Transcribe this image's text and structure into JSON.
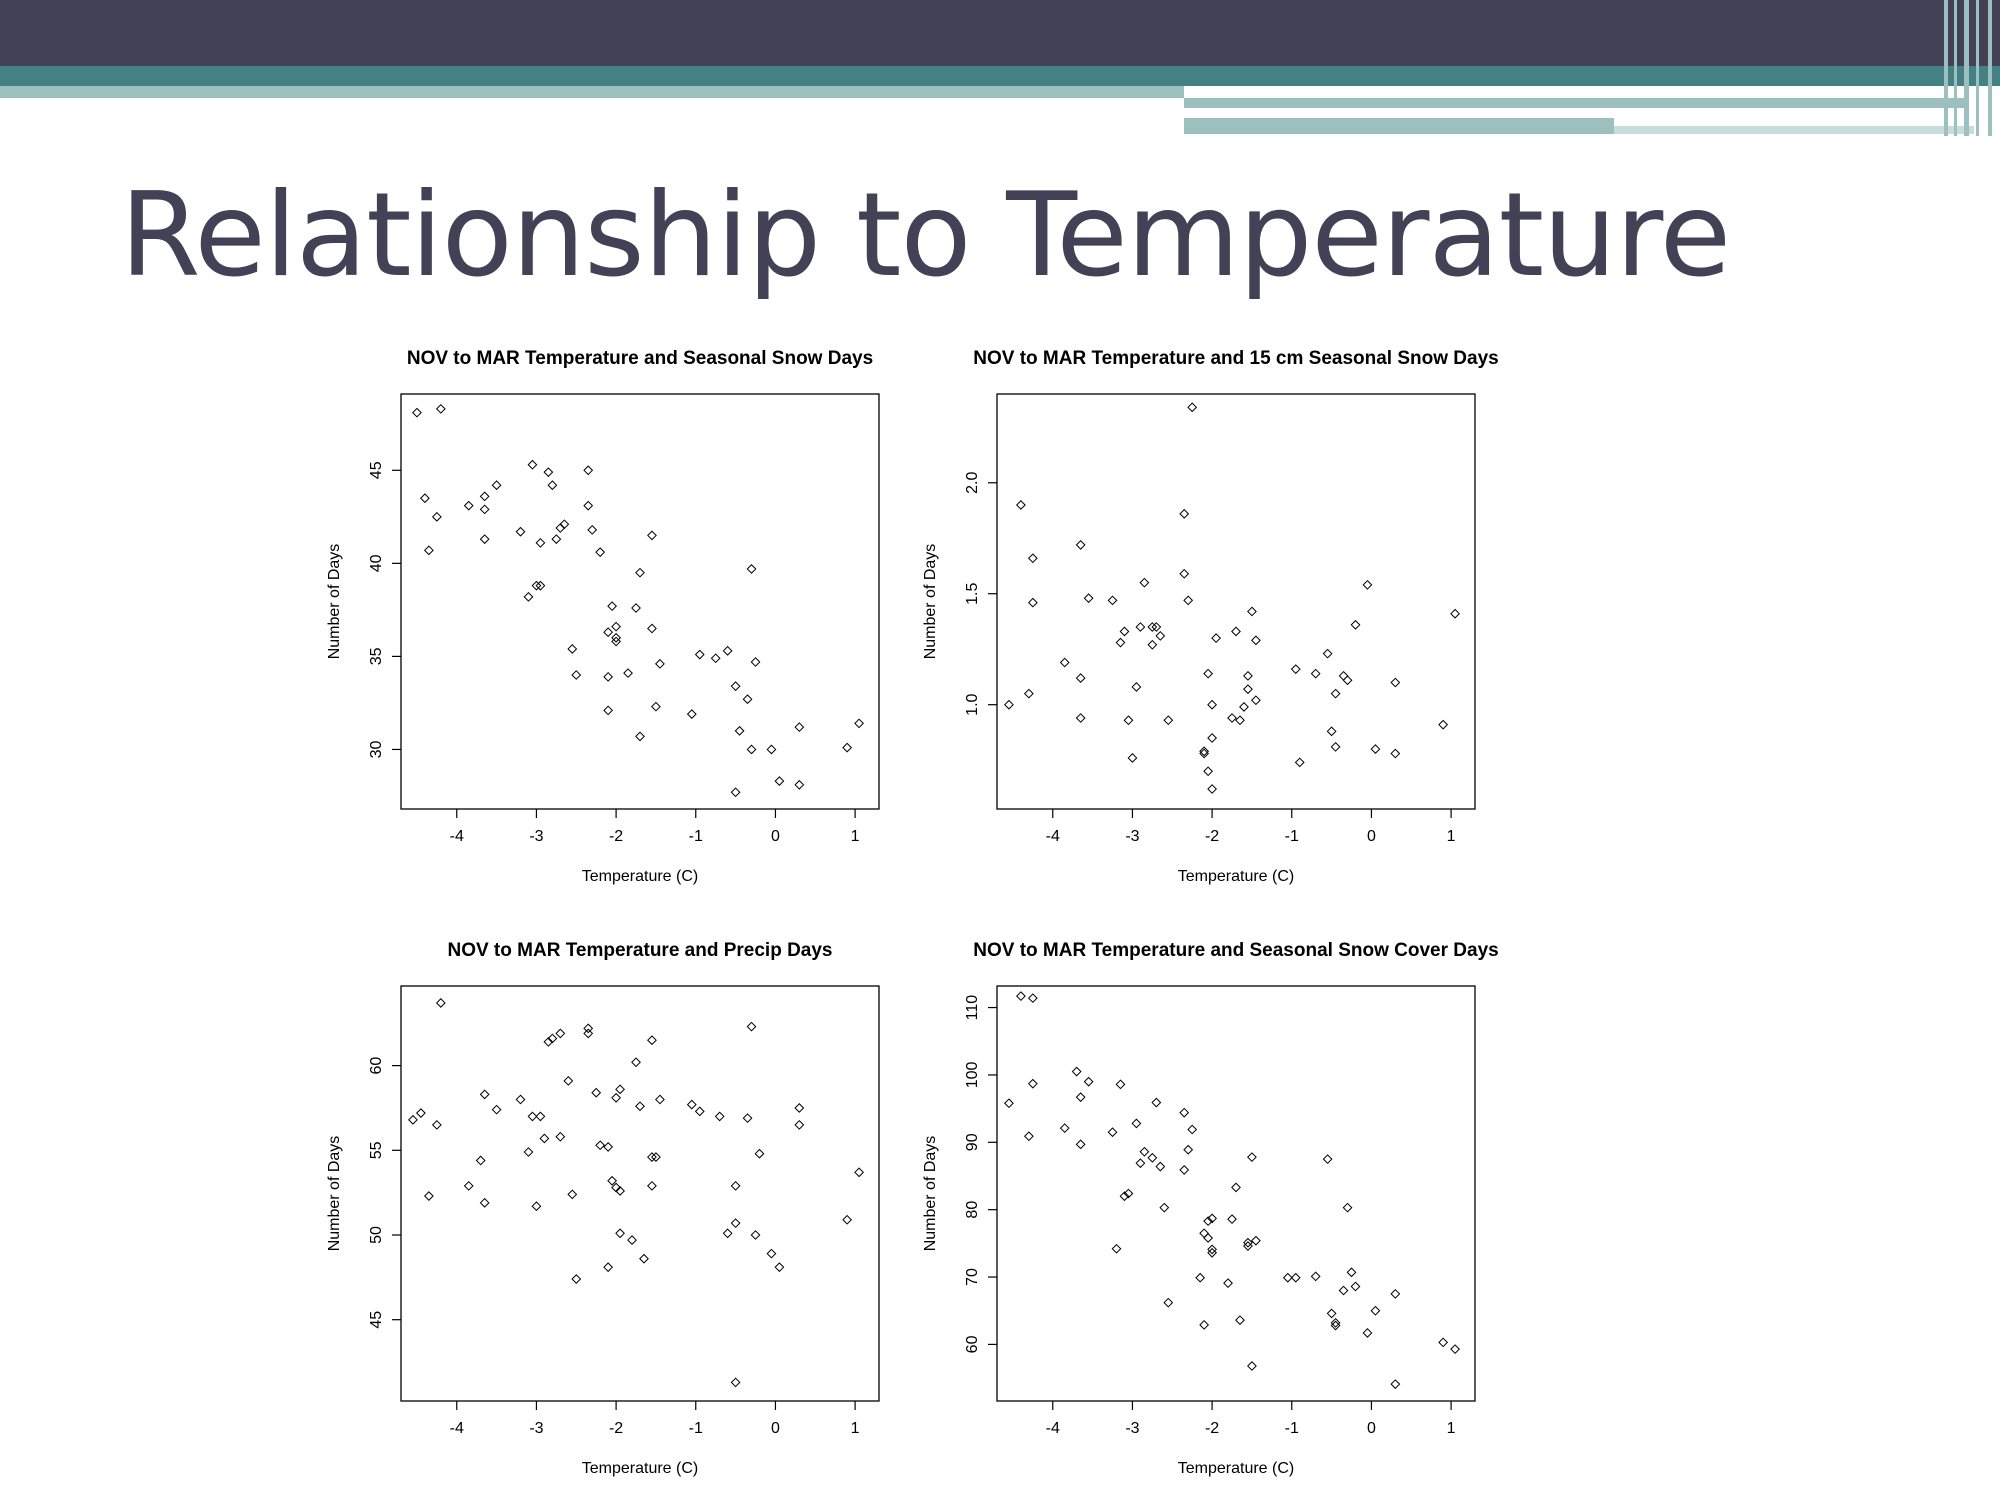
{
  "slide": {
    "title": "Relationship to Temperature",
    "colors": {
      "header_dark": "#424155",
      "header_teal": "#438185",
      "header_light": "#9cbfc0",
      "title_text": "#424155"
    }
  },
  "chart_data": [
    {
      "type": "scatter",
      "title": "NOV to MAR Temperature and Seasonal Snow Days",
      "xlabel": "Temperature (C)",
      "ylabel": "Number of Days",
      "xlim": [
        -4.7,
        1.3
      ],
      "ylim": [
        26.8,
        49.1
      ],
      "xticks": [
        -4,
        -3,
        -2,
        -1,
        0,
        1
      ],
      "yticks": [
        30,
        35,
        40,
        45
      ],
      "marker": "diamond",
      "points": [
        [
          -4.5,
          48.1
        ],
        [
          -4.2,
          48.3
        ],
        [
          -4.4,
          43.5
        ],
        [
          -4.25,
          42.5
        ],
        [
          -4.35,
          40.7
        ],
        [
          -3.85,
          43.1
        ],
        [
          -3.65,
          43.6
        ],
        [
          -3.65,
          42.9
        ],
        [
          -3.65,
          41.3
        ],
        [
          -3.5,
          44.2
        ],
        [
          -3.2,
          41.7
        ],
        [
          -3.1,
          38.2
        ],
        [
          -3.05,
          45.3
        ],
        [
          -3.0,
          38.8
        ],
        [
          -2.95,
          38.8
        ],
        [
          -2.95,
          41.1
        ],
        [
          -2.85,
          44.9
        ],
        [
          -2.8,
          44.2
        ],
        [
          -2.75,
          41.3
        ],
        [
          -2.7,
          41.9
        ],
        [
          -2.65,
          42.1
        ],
        [
          -2.55,
          35.4
        ],
        [
          -2.5,
          34.0
        ],
        [
          -2.35,
          45.0
        ],
        [
          -2.35,
          43.1
        ],
        [
          -2.3,
          41.8
        ],
        [
          -2.2,
          40.6
        ],
        [
          -2.1,
          36.3
        ],
        [
          -2.1,
          33.9
        ],
        [
          -2.1,
          32.1
        ],
        [
          -2.05,
          37.7
        ],
        [
          -2.0,
          36.6
        ],
        [
          -2.0,
          36.0
        ],
        [
          -2.0,
          35.8
        ],
        [
          -1.85,
          34.1
        ],
        [
          -1.75,
          37.6
        ],
        [
          -1.7,
          39.5
        ],
        [
          -1.7,
          30.7
        ],
        [
          -1.55,
          41.5
        ],
        [
          -1.55,
          36.5
        ],
        [
          -1.5,
          32.3
        ],
        [
          -1.45,
          34.6
        ],
        [
          -1.05,
          31.9
        ],
        [
          -0.95,
          35.1
        ],
        [
          -0.75,
          34.9
        ],
        [
          -0.6,
          35.3
        ],
        [
          -0.5,
          33.4
        ],
        [
          -0.5,
          27.7
        ],
        [
          -0.45,
          31.0
        ],
        [
          -0.35,
          32.7
        ],
        [
          -0.3,
          39.7
        ],
        [
          -0.25,
          34.7
        ],
        [
          -0.3,
          30.0
        ],
        [
          -0.05,
          30.0
        ],
        [
          0.05,
          28.3
        ],
        [
          0.3,
          28.1
        ],
        [
          0.3,
          31.2
        ],
        [
          0.9,
          30.1
        ],
        [
          1.05,
          31.4
        ]
      ]
    },
    {
      "type": "scatter",
      "title": "NOV to MAR Temperature and 15 cm Seasonal Snow Days",
      "xlabel": "Temperature (C)",
      "ylabel": "Number of Days",
      "xlim": [
        -4.7,
        1.3
      ],
      "ylim": [
        0.53,
        2.4
      ],
      "xticks": [
        -4,
        -3,
        -2,
        -1,
        0,
        1
      ],
      "yticks": [
        1.0,
        1.5,
        2.0
      ],
      "marker": "diamond",
      "points": [
        [
          -4.55,
          1.0
        ],
        [
          -4.4,
          1.9
        ],
        [
          -4.3,
          1.05
        ],
        [
          -4.25,
          1.66
        ],
        [
          -4.25,
          1.46
        ],
        [
          -3.85,
          1.19
        ],
        [
          -3.65,
          1.72
        ],
        [
          -3.65,
          1.12
        ],
        [
          -3.65,
          0.94
        ],
        [
          -3.55,
          1.48
        ],
        [
          -3.25,
          1.47
        ],
        [
          -3.15,
          1.28
        ],
        [
          -3.1,
          1.33
        ],
        [
          -3.05,
          0.93
        ],
        [
          -3.0,
          0.76
        ],
        [
          -2.95,
          1.08
        ],
        [
          -2.9,
          1.35
        ],
        [
          -2.85,
          1.55
        ],
        [
          -2.75,
          1.27
        ],
        [
          -2.75,
          1.35
        ],
        [
          -2.7,
          1.35
        ],
        [
          -2.65,
          1.31
        ],
        [
          -2.55,
          0.93
        ],
        [
          -2.35,
          1.86
        ],
        [
          -2.35,
          1.59
        ],
        [
          -2.3,
          1.47
        ],
        [
          -2.25,
          2.34
        ],
        [
          -2.1,
          0.78
        ],
        [
          -2.1,
          0.79
        ],
        [
          -2.05,
          0.7
        ],
        [
          -2.05,
          1.14
        ],
        [
          -2.0,
          0.62
        ],
        [
          -2.0,
          1.0
        ],
        [
          -2.0,
          0.85
        ],
        [
          -1.95,
          1.3
        ],
        [
          -1.75,
          0.94
        ],
        [
          -1.7,
          1.33
        ],
        [
          -1.65,
          0.93
        ],
        [
          -1.6,
          0.99
        ],
        [
          -1.55,
          1.13
        ],
        [
          -1.55,
          1.07
        ],
        [
          -1.5,
          1.42
        ],
        [
          -1.45,
          1.02
        ],
        [
          -1.45,
          1.29
        ],
        [
          -0.95,
          1.16
        ],
        [
          -0.9,
          0.74
        ],
        [
          -0.7,
          1.14
        ],
        [
          -0.55,
          1.23
        ],
        [
          -0.5,
          0.88
        ],
        [
          -0.45,
          0.81
        ],
        [
          -0.45,
          1.05
        ],
        [
          -0.35,
          1.13
        ],
        [
          -0.3,
          1.11
        ],
        [
          -0.2,
          1.36
        ],
        [
          -0.05,
          1.54
        ],
        [
          0.05,
          0.8
        ],
        [
          0.3,
          1.1
        ],
        [
          0.3,
          0.78
        ],
        [
          0.9,
          0.91
        ],
        [
          1.05,
          1.41
        ]
      ]
    },
    {
      "type": "scatter",
      "title": "NOV to MAR Temperature and Precip Days",
      "xlabel": "Temperature (C)",
      "ylabel": "Number of Days",
      "xlim": [
        -4.7,
        1.3
      ],
      "ylim": [
        40.2,
        64.7
      ],
      "xticks": [
        -4,
        -3,
        -2,
        -1,
        0,
        1
      ],
      "yticks": [
        45,
        50,
        55,
        60
      ],
      "marker": "diamond",
      "points": [
        [
          -4.55,
          56.8
        ],
        [
          -4.45,
          57.2
        ],
        [
          -4.35,
          52.3
        ],
        [
          -4.25,
          56.5
        ],
        [
          -4.2,
          63.7
        ],
        [
          -3.85,
          52.9
        ],
        [
          -3.7,
          54.4
        ],
        [
          -3.65,
          58.3
        ],
        [
          -3.65,
          51.9
        ],
        [
          -3.5,
          57.4
        ],
        [
          -3.2,
          58.0
        ],
        [
          -3.1,
          54.9
        ],
        [
          -3.05,
          57.0
        ],
        [
          -3.0,
          51.7
        ],
        [
          -2.95,
          57.0
        ],
        [
          -2.9,
          55.7
        ],
        [
          -2.85,
          61.4
        ],
        [
          -2.8,
          61.6
        ],
        [
          -2.7,
          61.9
        ],
        [
          -2.7,
          55.8
        ],
        [
          -2.6,
          59.1
        ],
        [
          -2.55,
          52.4
        ],
        [
          -2.5,
          47.4
        ],
        [
          -2.35,
          62.2
        ],
        [
          -2.35,
          61.9
        ],
        [
          -2.25,
          58.4
        ],
        [
          -2.2,
          55.3
        ],
        [
          -2.1,
          55.2
        ],
        [
          -2.1,
          48.1
        ],
        [
          -2.05,
          53.2
        ],
        [
          -2.0,
          52.8
        ],
        [
          -2.0,
          58.1
        ],
        [
          -1.95,
          58.6
        ],
        [
          -1.95,
          50.1
        ],
        [
          -1.95,
          52.6
        ],
        [
          -1.8,
          49.7
        ],
        [
          -1.75,
          60.2
        ],
        [
          -1.7,
          57.6
        ],
        [
          -1.65,
          48.6
        ],
        [
          -1.55,
          54.6
        ],
        [
          -1.55,
          61.5
        ],
        [
          -1.5,
          54.6
        ],
        [
          -1.45,
          58.0
        ],
        [
          -1.55,
          52.9
        ],
        [
          -1.05,
          57.7
        ],
        [
          -0.95,
          57.3
        ],
        [
          -0.7,
          57.0
        ],
        [
          -0.6,
          50.1
        ],
        [
          -0.5,
          50.7
        ],
        [
          -0.5,
          52.9
        ],
        [
          -0.5,
          41.3
        ],
        [
          -0.35,
          56.9
        ],
        [
          -0.3,
          62.3
        ],
        [
          -0.25,
          50.0
        ],
        [
          -0.2,
          54.8
        ],
        [
          -0.05,
          48.9
        ],
        [
          0.05,
          48.1
        ],
        [
          0.3,
          57.5
        ],
        [
          0.3,
          56.5
        ],
        [
          0.9,
          50.9
        ],
        [
          1.05,
          53.7
        ]
      ]
    },
    {
      "type": "scatter",
      "title": "NOV to MAR Temperature and Seasonal Snow Cover Days",
      "xlabel": "Temperature (C)",
      "ylabel": "Number of Days",
      "xlim": [
        -4.7,
        1.3
      ],
      "ylim": [
        51.6,
        113.2
      ],
      "xticks": [
        -4,
        -3,
        -2,
        -1,
        0,
        1
      ],
      "yticks": [
        60,
        70,
        80,
        90,
        100,
        110
      ],
      "marker": "diamond",
      "points": [
        [
          -4.55,
          95.8
        ],
        [
          -4.4,
          111.7
        ],
        [
          -4.3,
          90.9
        ],
        [
          -4.25,
          98.7
        ],
        [
          -4.25,
          111.4
        ],
        [
          -3.85,
          92.1
        ],
        [
          -3.7,
          100.5
        ],
        [
          -3.65,
          96.7
        ],
        [
          -3.65,
          89.7
        ],
        [
          -3.55,
          99.0
        ],
        [
          -3.25,
          91.5
        ],
        [
          -3.2,
          74.2
        ],
        [
          -3.15,
          98.6
        ],
        [
          -3.1,
          82.0
        ],
        [
          -3.05,
          82.4
        ],
        [
          -2.95,
          92.8
        ],
        [
          -2.9,
          86.9
        ],
        [
          -2.85,
          88.6
        ],
        [
          -2.75,
          87.7
        ],
        [
          -2.7,
          95.9
        ],
        [
          -2.65,
          86.4
        ],
        [
          -2.6,
          80.3
        ],
        [
          -2.55,
          66.2
        ],
        [
          -2.35,
          94.4
        ],
        [
          -2.35,
          85.9
        ],
        [
          -2.3,
          88.9
        ],
        [
          -2.25,
          91.9
        ],
        [
          -2.15,
          69.9
        ],
        [
          -2.1,
          62.9
        ],
        [
          -2.1,
          76.5
        ],
        [
          -2.05,
          75.8
        ],
        [
          -2.05,
          78.3
        ],
        [
          -2.0,
          78.7
        ],
        [
          -2.0,
          73.6
        ],
        [
          -2.0,
          74.1
        ],
        [
          -1.8,
          69.1
        ],
        [
          -1.75,
          78.6
        ],
        [
          -1.7,
          83.3
        ],
        [
          -1.65,
          63.6
        ],
        [
          -1.55,
          74.6
        ],
        [
          -1.55,
          75.1
        ],
        [
          -1.5,
          87.8
        ],
        [
          -1.5,
          56.8
        ],
        [
          -1.45,
          75.4
        ],
        [
          -1.05,
          69.9
        ],
        [
          -0.95,
          69.9
        ],
        [
          -0.7,
          70.1
        ],
        [
          -0.55,
          87.5
        ],
        [
          -0.5,
          64.6
        ],
        [
          -0.45,
          63.2
        ],
        [
          -0.45,
          62.8
        ],
        [
          -0.35,
          68.0
        ],
        [
          -0.3,
          80.3
        ],
        [
          -0.25,
          70.7
        ],
        [
          -0.2,
          68.6
        ],
        [
          -0.05,
          61.7
        ],
        [
          0.05,
          65.0
        ],
        [
          0.3,
          67.5
        ],
        [
          0.3,
          54.1
        ],
        [
          0.9,
          60.3
        ],
        [
          1.05,
          59.3
        ]
      ]
    }
  ]
}
